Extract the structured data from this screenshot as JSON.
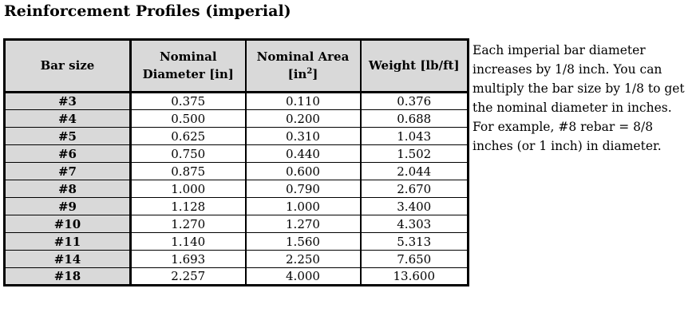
{
  "title": "Reinforcement Profiles (imperial)",
  "table": {
    "headers": {
      "bar_size": "Bar size",
      "diameter_line1": "Nominal",
      "diameter_line2": "Diameter [in]",
      "area_line1": "Nominal Area",
      "area_unit_pre": "[in",
      "area_unit_sup": "2",
      "area_unit_post": "]",
      "weight": "Weight [lb/ft]"
    },
    "rows": [
      {
        "size": "#3",
        "diameter": "0.375",
        "area": "0.110",
        "weight": "0.376"
      },
      {
        "size": "#4",
        "diameter": "0.500",
        "area": "0.200",
        "weight": "0.688"
      },
      {
        "size": "#5",
        "diameter": "0.625",
        "area": "0.310",
        "weight": "1.043"
      },
      {
        "size": "#6",
        "diameter": "0.750",
        "area": "0.440",
        "weight": "1.502"
      },
      {
        "size": "#7",
        "diameter": "0.875",
        "area": "0.600",
        "weight": "2.044"
      },
      {
        "size": "#8",
        "diameter": "1.000",
        "area": "0.790",
        "weight": "2.670"
      },
      {
        "size": "#9",
        "diameter": "1.128",
        "area": "1.000",
        "weight": "3.400"
      },
      {
        "size": "#10",
        "diameter": "1.270",
        "area": "1.270",
        "weight": "4.303"
      },
      {
        "size": "#11",
        "diameter": "1.140",
        "area": "1.560",
        "weight": "5.313"
      },
      {
        "size": "#14",
        "diameter": "1.693",
        "area": "2.250",
        "weight": "7.650"
      },
      {
        "size": "#18",
        "diameter": "2.257",
        "area": "4.000",
        "weight": "13.600"
      }
    ]
  },
  "note": {
    "lines": [
      "Each imperial bar diameter",
      "increases by 1/8 inch. You can",
      "multiply the bar size by 1/8 to get",
      "the nominal diameter in inches.",
      "For example, #8 rebar = 8/8",
      "inches (or 1 inch) in diameter."
    ]
  },
  "colors": {
    "header_bg": "#d9d9d9",
    "border": "#000000",
    "text": "#000000",
    "page_bg": "#ffffff"
  }
}
